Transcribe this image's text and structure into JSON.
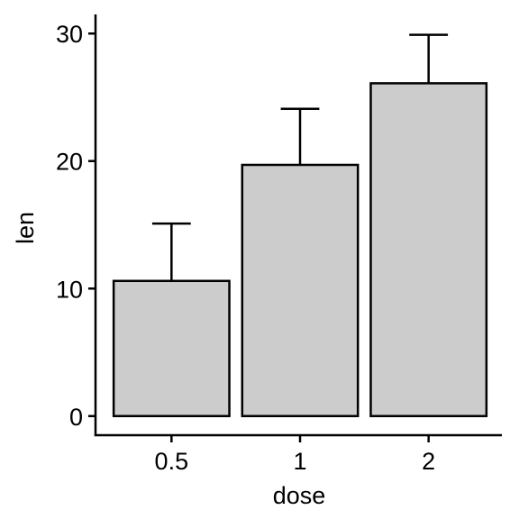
{
  "chart_data": {
    "type": "bar",
    "title": "",
    "xlabel": "dose",
    "ylabel": "len",
    "categories": [
      "0.5",
      "1",
      "2"
    ],
    "values": [
      10.6,
      19.7,
      26.1
    ],
    "error_upper": [
      15.1,
      24.1,
      29.9
    ],
    "ylim": [
      -1.5,
      31.5
    ],
    "yticks": [
      0,
      10,
      20,
      30
    ],
    "ytick_labels": [
      "0",
      "10",
      "20",
      "30"
    ],
    "grid": false,
    "legend": "none",
    "colors": {
      "bar_fill": "#cccccc",
      "bar_stroke": "#000000",
      "axis": "#000000"
    }
  }
}
